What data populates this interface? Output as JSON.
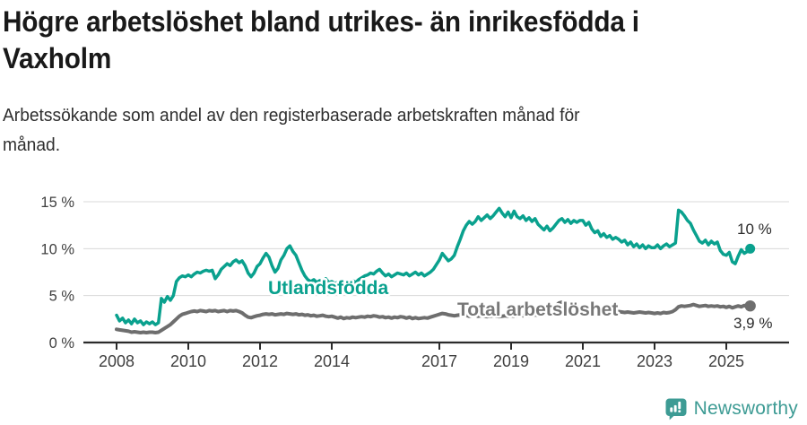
{
  "header": {
    "title_line1": "Högre arbetslöshet bland utrikes- än inrikesfödda i",
    "title_line2": "Vaxholm",
    "subtitle_line1": "Arbetssökande som andel av den registerbaserade arbetskraften månad för",
    "subtitle_line2": "månad."
  },
  "footer": {
    "brand": "Newsworthy",
    "brand_color": "#3d9b94"
  },
  "colors": {
    "series_foreign_born": "#0aa18e",
    "series_total": "#6e6e6e",
    "grid": "#d8d8d8",
    "axis": "#2b2b2b"
  },
  "chart_data": {
    "type": "line",
    "title": "Högre arbetslöshet bland utrikes- än inrikesfödda i Vaxholm",
    "subtitle": "Arbetssökande som andel av den registerbaserade arbetskraften månad för månad.",
    "grid": true,
    "legend_position": "inline-labels",
    "x_axis": {
      "label": "",
      "tick_years": [
        2008,
        2010,
        2012,
        2014,
        2017,
        2019,
        2021,
        2023,
        2025
      ],
      "tick_labels": [
        "2008",
        "2010",
        "2012",
        "2014",
        "2017",
        "2019",
        "2021",
        "2023",
        "2025"
      ],
      "range": [
        2007.1,
        2026.7
      ],
      "data_start": "2008-01",
      "data_end": "2025-09",
      "interval": "monthly"
    },
    "y_axis": {
      "label": "",
      "unit": "%",
      "ticks": [
        0,
        5,
        10,
        15
      ],
      "tick_labels": [
        "0 %",
        "5 %",
        "10 %",
        "15 %"
      ],
      "ylim": [
        0,
        16.5
      ]
    },
    "series": [
      {
        "name": "Utlandsfödda",
        "color": "#0aa18e",
        "end_label": "10 %",
        "end_value": 10.0,
        "start_year": 2008,
        "values": [
          2.9,
          2.3,
          2.6,
          2.1,
          2.4,
          2.0,
          2.5,
          2.1,
          2.3,
          1.9,
          2.2,
          2.0,
          2.2,
          1.9,
          2.1,
          4.7,
          4.3,
          4.9,
          4.5,
          5.0,
          6.5,
          6.9,
          7.1,
          7.0,
          7.2,
          7.0,
          7.3,
          7.5,
          7.4,
          7.6,
          7.7,
          7.6,
          7.7,
          6.8,
          7.2,
          7.8,
          8.1,
          8.4,
          8.2,
          8.6,
          8.8,
          8.5,
          8.7,
          8.2,
          7.4,
          7.0,
          7.4,
          8.1,
          8.4,
          9.0,
          9.5,
          9.1,
          8.2,
          7.5,
          7.9,
          8.8,
          9.3,
          10.0,
          10.3,
          9.7,
          9.3,
          8.5,
          7.7,
          7.1,
          6.7,
          6.5,
          6.7,
          6.4,
          6.6,
          6.4,
          6.8,
          6.4,
          6.5,
          6.3,
          6.4,
          6.2,
          6.4,
          6.3,
          6.5,
          6.6,
          6.4,
          6.7,
          6.9,
          7.1,
          7.2,
          7.4,
          7.3,
          7.6,
          7.8,
          7.4,
          7.1,
          7.3,
          7.0,
          7.2,
          7.4,
          7.3,
          7.2,
          7.4,
          7.1,
          7.3,
          7.5,
          7.2,
          7.4,
          7.1,
          7.3,
          7.5,
          7.8,
          8.3,
          8.8,
          9.5,
          9.1,
          8.7,
          8.9,
          9.3,
          10.2,
          11.0,
          11.9,
          12.5,
          12.9,
          12.6,
          12.9,
          13.4,
          13.0,
          13.3,
          13.6,
          13.2,
          13.5,
          13.9,
          14.3,
          13.8,
          13.4,
          13.9,
          13.3,
          14.0,
          13.4,
          13.2,
          13.5,
          13.0,
          13.3,
          12.9,
          13.2,
          12.6,
          12.3,
          12.0,
          12.4,
          11.9,
          12.2,
          12.6,
          13.0,
          13.2,
          12.8,
          13.1,
          12.7,
          13.0,
          12.8,
          13.0,
          13.0,
          12.5,
          12.8,
          12.1,
          11.7,
          11.9,
          11.3,
          11.6,
          11.2,
          11.4,
          11.0,
          11.2,
          11.0,
          10.7,
          10.9,
          10.4,
          10.7,
          10.2,
          10.5,
          10.1,
          10.4,
          10.0,
          10.3,
          10.1,
          10.1,
          10.4,
          10.0,
          10.3,
          10.5,
          10.2,
          10.4,
          10.6,
          14.1,
          13.9,
          13.5,
          13.0,
          12.7,
          12.0,
          11.4,
          10.8,
          10.6,
          10.9,
          10.4,
          10.8,
          10.5,
          10.7,
          9.8,
          9.4,
          9.3,
          9.6,
          8.6,
          8.4,
          9.2,
          9.9,
          9.5,
          9.7,
          10.0
        ]
      },
      {
        "name": "Total arbetslöshet",
        "color": "#6e6e6e",
        "end_label": "3,9 %",
        "end_value": 3.9,
        "start_year": 2008,
        "values": [
          1.4,
          1.35,
          1.3,
          1.25,
          1.2,
          1.1,
          1.15,
          1.1,
          1.05,
          1.1,
          1.05,
          1.1,
          1.1,
          1.05,
          1.1,
          1.3,
          1.5,
          1.7,
          1.9,
          2.2,
          2.5,
          2.8,
          3.0,
          3.1,
          3.2,
          3.3,
          3.35,
          3.3,
          3.4,
          3.35,
          3.3,
          3.4,
          3.35,
          3.4,
          3.3,
          3.35,
          3.4,
          3.3,
          3.4,
          3.35,
          3.4,
          3.3,
          3.15,
          2.9,
          2.7,
          2.65,
          2.75,
          2.85,
          2.9,
          3.0,
          3.05,
          3.0,
          3.05,
          2.95,
          3.0,
          3.05,
          3.0,
          3.1,
          3.05,
          3.0,
          3.05,
          2.95,
          3.0,
          2.9,
          2.95,
          2.85,
          2.9,
          2.8,
          2.85,
          2.9,
          2.8,
          2.75,
          2.8,
          2.7,
          2.6,
          2.7,
          2.55,
          2.65,
          2.6,
          2.7,
          2.65,
          2.7,
          2.75,
          2.7,
          2.8,
          2.75,
          2.85,
          2.8,
          2.7,
          2.75,
          2.65,
          2.7,
          2.6,
          2.7,
          2.65,
          2.75,
          2.7,
          2.6,
          2.7,
          2.55,
          2.65,
          2.55,
          2.6,
          2.65,
          2.6,
          2.7,
          2.8,
          2.9,
          3.0,
          3.1,
          3.05,
          2.95,
          2.9,
          2.85,
          2.9,
          2.95,
          2.85,
          2.9,
          2.8,
          2.85,
          2.9,
          2.8,
          2.85,
          2.8,
          2.75,
          2.8,
          2.85,
          2.8,
          2.75,
          2.8,
          2.85,
          2.8,
          2.85,
          2.8,
          2.85,
          2.9,
          2.85,
          2.9,
          2.85,
          2.9,
          2.95,
          2.9,
          2.95,
          3.0,
          3.05,
          3.1,
          3.4,
          3.9,
          4.2,
          4.3,
          4.25,
          4.15,
          4.05,
          3.95,
          3.85,
          3.75,
          3.7,
          3.65,
          3.6,
          3.5,
          3.45,
          3.4,
          3.35,
          3.3,
          3.25,
          3.3,
          3.25,
          3.3,
          3.3,
          3.25,
          3.2,
          3.25,
          3.2,
          3.15,
          3.2,
          3.25,
          3.2,
          3.15,
          3.2,
          3.15,
          3.1,
          3.15,
          3.1,
          3.2,
          3.15,
          3.2,
          3.3,
          3.5,
          3.8,
          3.9,
          3.85,
          3.9,
          3.95,
          4.05,
          3.95,
          3.85,
          3.9,
          3.95,
          3.85,
          3.9,
          3.85,
          3.9,
          3.8,
          3.85,
          3.75,
          3.85,
          3.7,
          3.8,
          3.9,
          3.8,
          3.95,
          3.85,
          3.9
        ]
      }
    ]
  }
}
